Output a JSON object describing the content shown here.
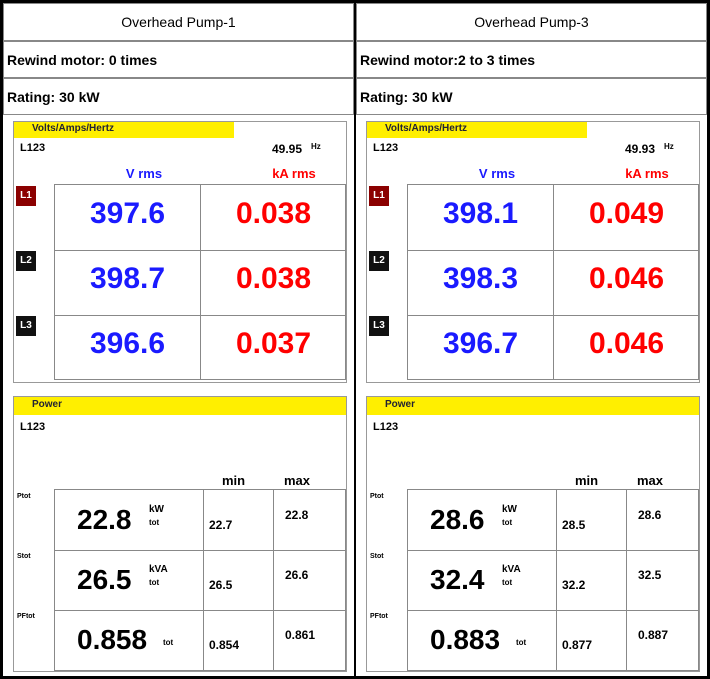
{
  "columns": [
    {
      "title": "Overhead Pump-1",
      "rewind": "Rewind motor: 0 times",
      "rating": "Rating: 30 kW",
      "meter": {
        "header": "Volts/Amps/Hertz",
        "phase": "L123",
        "frequency": "49.95",
        "frequency_unit": "Hz",
        "headers": [
          "V rms",
          "kA rms"
        ],
        "rows": [
          {
            "label": "L1",
            "values": [
              "397.6",
              "0.038"
            ]
          },
          {
            "label": "L2",
            "values": [
              "398.7",
              "0.038"
            ]
          },
          {
            "label": "L3",
            "values": [
              "396.6",
              "0.037"
            ]
          }
        ]
      },
      "power": {
        "header": "Power",
        "phase": "L123",
        "headers": [
          "min",
          "max"
        ],
        "rows": [
          {
            "label": "Ptot",
            "value": "22.8",
            "unit": "kW",
            "sub": "tot",
            "min": "22.7",
            "max": "22.8"
          },
          {
            "label": "Stot",
            "value": "26.5",
            "unit": "kVA",
            "sub": "tot",
            "min": "26.5",
            "max": "26.6"
          },
          {
            "label": "PFtot",
            "value": "0.858",
            "sub": "tot",
            "min": "0.854",
            "max": "0.861"
          }
        ]
      }
    },
    {
      "title": "Overhead Pump-3",
      "rewind": "Rewind motor:2 to 3 times",
      "rating": "Rating: 30 kW",
      "meter": {
        "header": "Volts/Amps/Hertz",
        "phase": "L123",
        "frequency": "49.93",
        "frequency_unit": "Hz",
        "headers": [
          "V rms",
          "kA rms"
        ],
        "rows": [
          {
            "label": "L1",
            "values": [
              "398.1",
              "0.049"
            ]
          },
          {
            "label": "L2",
            "values": [
              "398.3",
              "0.046"
            ]
          },
          {
            "label": "L3",
            "values": [
              "396.7",
              "0.046"
            ]
          }
        ]
      },
      "power": {
        "header": "Power",
        "phase": "L123",
        "headers": [
          "min",
          "max"
        ],
        "rows": [
          {
            "label": "Ptot",
            "value": "28.6",
            "unit": "kW",
            "sub": "tot",
            "min": "28.5",
            "max": "28.6"
          },
          {
            "label": "Stot",
            "value": "32.4",
            "unit": "kVA",
            "sub": "tot",
            "min": "32.2",
            "max": "32.5"
          },
          {
            "label": "PFtot",
            "value": "0.883",
            "sub": "tot",
            "min": "0.877",
            "max": "0.887"
          }
        ]
      }
    }
  ]
}
